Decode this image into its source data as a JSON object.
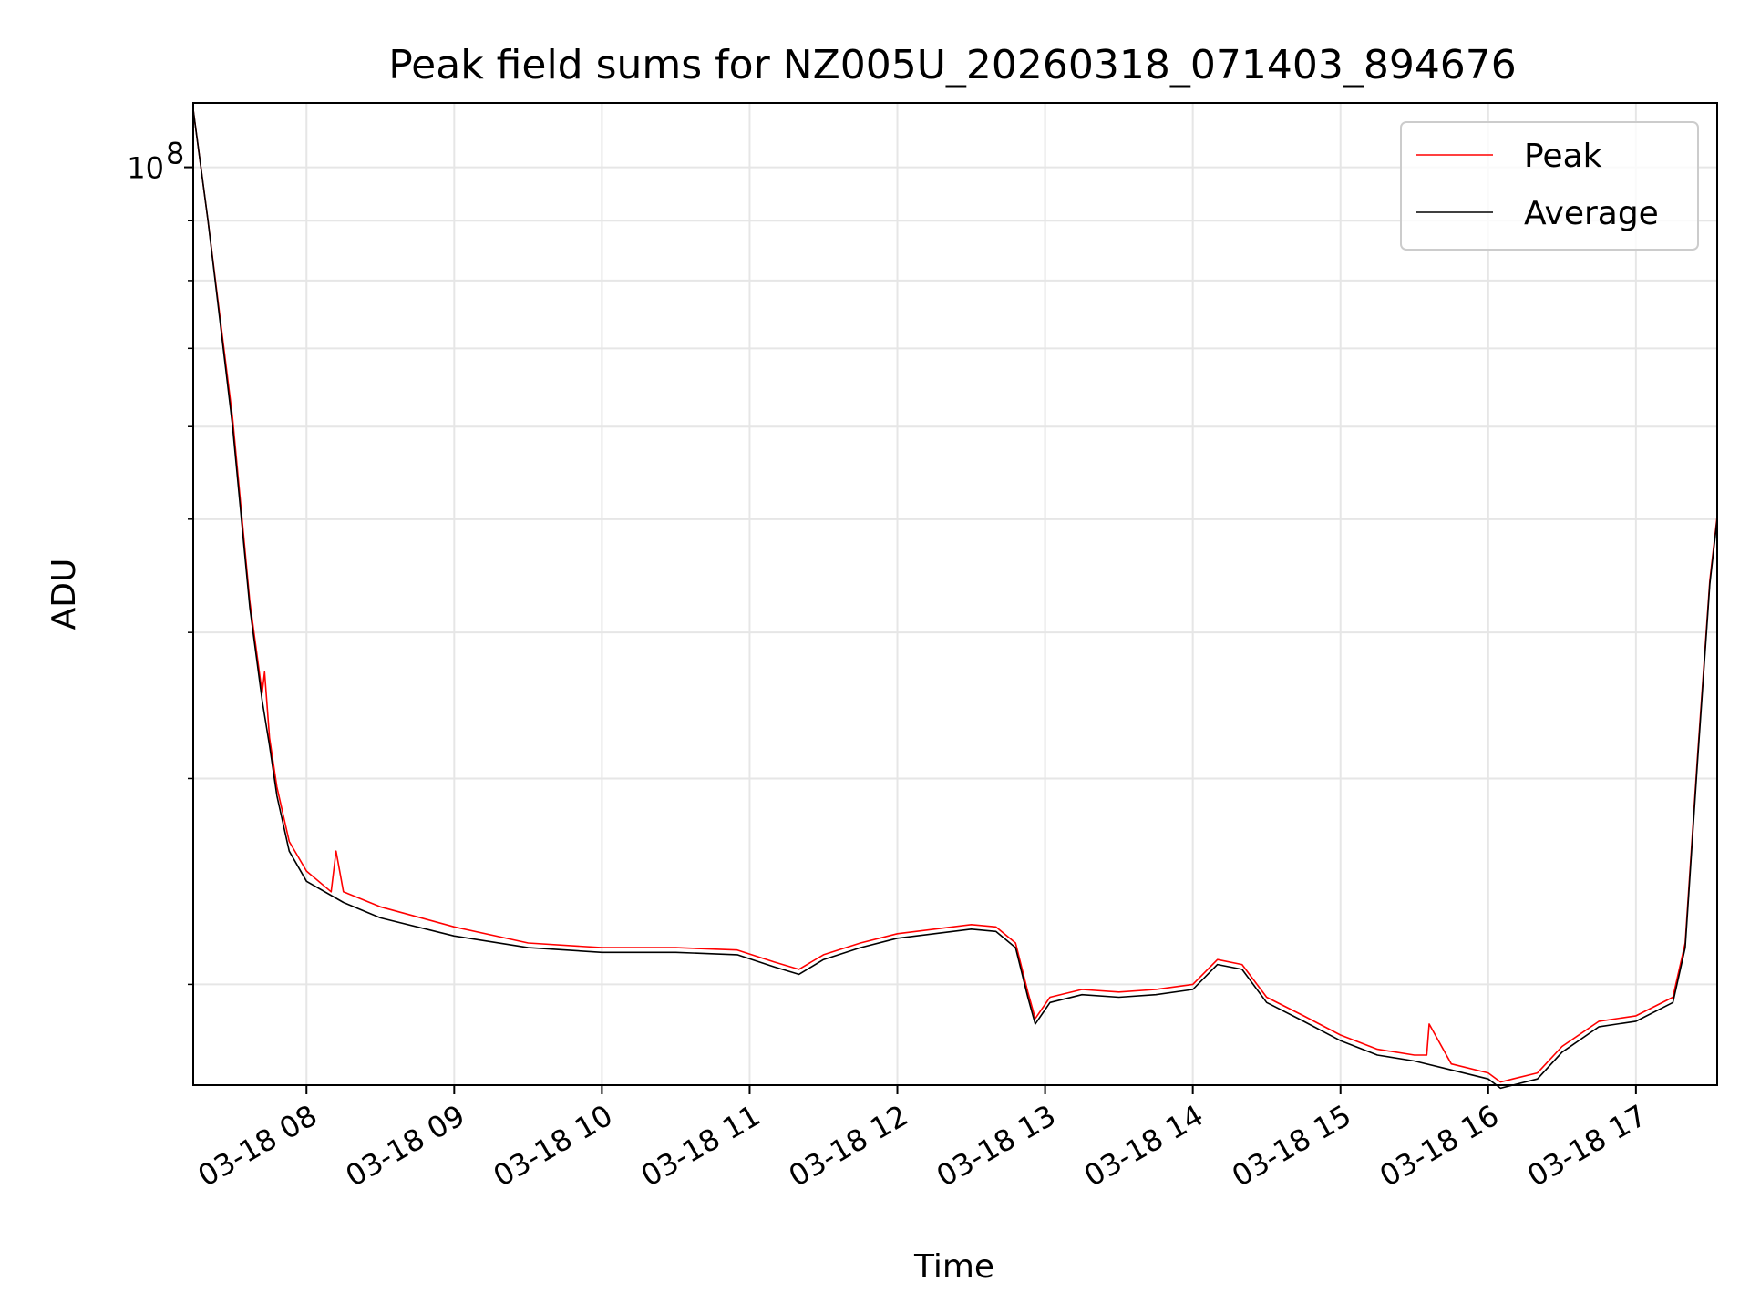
{
  "chart_data": {
    "type": "line",
    "title": "Peak field sums for NZ005U_20260318_071403_894676",
    "xlabel": "Time",
    "ylabel": "ADU",
    "y_scale": "log",
    "y_major_tick_labels": [
      {
        "value": 100000000,
        "base": "10",
        "exponent": "8"
      }
    ],
    "x_tick_labels": [
      "03-18 08",
      "03-18 09",
      "03-18 10",
      "03-18 11",
      "03-18 12",
      "03-18 13",
      "03-18 14",
      "03-18 15",
      "03-18 16",
      "03-18 17"
    ],
    "grid": true,
    "legend": {
      "placement": "top-right",
      "entries": [
        "Peak",
        "Average"
      ]
    },
    "colors": {
      "Peak": "#ff0000",
      "Average": "#000000"
    },
    "series": [
      {
        "name": "Average",
        "x": [
          "07:14",
          "07:20",
          "07:30",
          "07:37",
          "07:42",
          "07:45",
          "07:48",
          "07:53",
          "08:00",
          "08:15",
          "08:30",
          "09:00",
          "09:30",
          "10:00",
          "10:30",
          "10:55",
          "11:10",
          "11:20",
          "11:30",
          "11:45",
          "12:00",
          "12:15",
          "12:30",
          "12:40",
          "12:48",
          "12:53",
          "12:56",
          "13:02",
          "13:15",
          "13:30",
          "13:45",
          "14:00",
          "14:10",
          "14:20",
          "14:30",
          "14:45",
          "15:00",
          "15:15",
          "15:30",
          "15:45",
          "16:00",
          "16:05",
          "16:10",
          "16:20",
          "16:30",
          "16:45",
          "17:00",
          "17:15",
          "17:20",
          "17:25",
          "17:30",
          "17:33"
        ],
        "y": [
          112000000,
          90000000,
          60000000,
          42000000,
          35000000,
          32000000,
          29000000,
          26000000,
          24500000,
          23500000,
          22800000,
          22000000,
          21500000,
          21300000,
          21300000,
          21200000,
          20700000,
          20400000,
          21000000,
          21500000,
          21900000,
          22100000,
          22300000,
          22200000,
          21500000,
          19500000,
          18500000,
          19300000,
          19600000,
          19500000,
          19600000,
          19800000,
          20800000,
          20600000,
          19300000,
          18600000,
          17900000,
          17400000,
          17200000,
          16900000,
          16600000,
          16300000,
          16400000,
          16600000,
          17500000,
          18400000,
          18600000,
          19300000,
          21500000,
          31000000,
          44000000,
          50000000
        ]
      },
      {
        "name": "Peak",
        "x": [
          "07:14",
          "07:20",
          "07:30",
          "07:37",
          "07:42",
          "07:43",
          "07:45",
          "07:48",
          "07:53",
          "08:00",
          "08:10",
          "08:12",
          "08:15",
          "08:30",
          "09:00",
          "09:30",
          "10:00",
          "10:30",
          "10:55",
          "11:10",
          "11:20",
          "11:30",
          "11:45",
          "12:00",
          "12:15",
          "12:30",
          "12:40",
          "12:48",
          "12:53",
          "12:56",
          "13:02",
          "13:15",
          "13:30",
          "13:45",
          "14:00",
          "14:10",
          "14:20",
          "14:30",
          "14:45",
          "15:00",
          "15:15",
          "15:30",
          "15:35",
          "15:36",
          "15:45",
          "16:00",
          "16:05",
          "16:10",
          "16:20",
          "16:30",
          "16:45",
          "17:00",
          "17:15",
          "17:20",
          "17:25",
          "17:30",
          "17:33"
        ],
        "y": [
          112000000,
          90000000,
          61000000,
          42500000,
          35500000,
          37000000,
          32500000,
          29500000,
          26500000,
          25000000,
          24000000,
          26000000,
          24000000,
          23300000,
          22400000,
          21700000,
          21500000,
          21500000,
          21400000,
          20900000,
          20600000,
          21200000,
          21700000,
          22100000,
          22300000,
          22500000,
          22400000,
          21700000,
          19700000,
          18700000,
          19500000,
          19800000,
          19700000,
          19800000,
          20000000,
          21000000,
          20800000,
          19500000,
          18800000,
          18100000,
          17600000,
          17400000,
          17400000,
          18500000,
          17100000,
          16800000,
          16500000,
          16600000,
          16800000,
          17700000,
          18600000,
          18800000,
          19500000,
          21700000,
          31300000,
          44300000,
          50300000
        ]
      }
    ]
  }
}
